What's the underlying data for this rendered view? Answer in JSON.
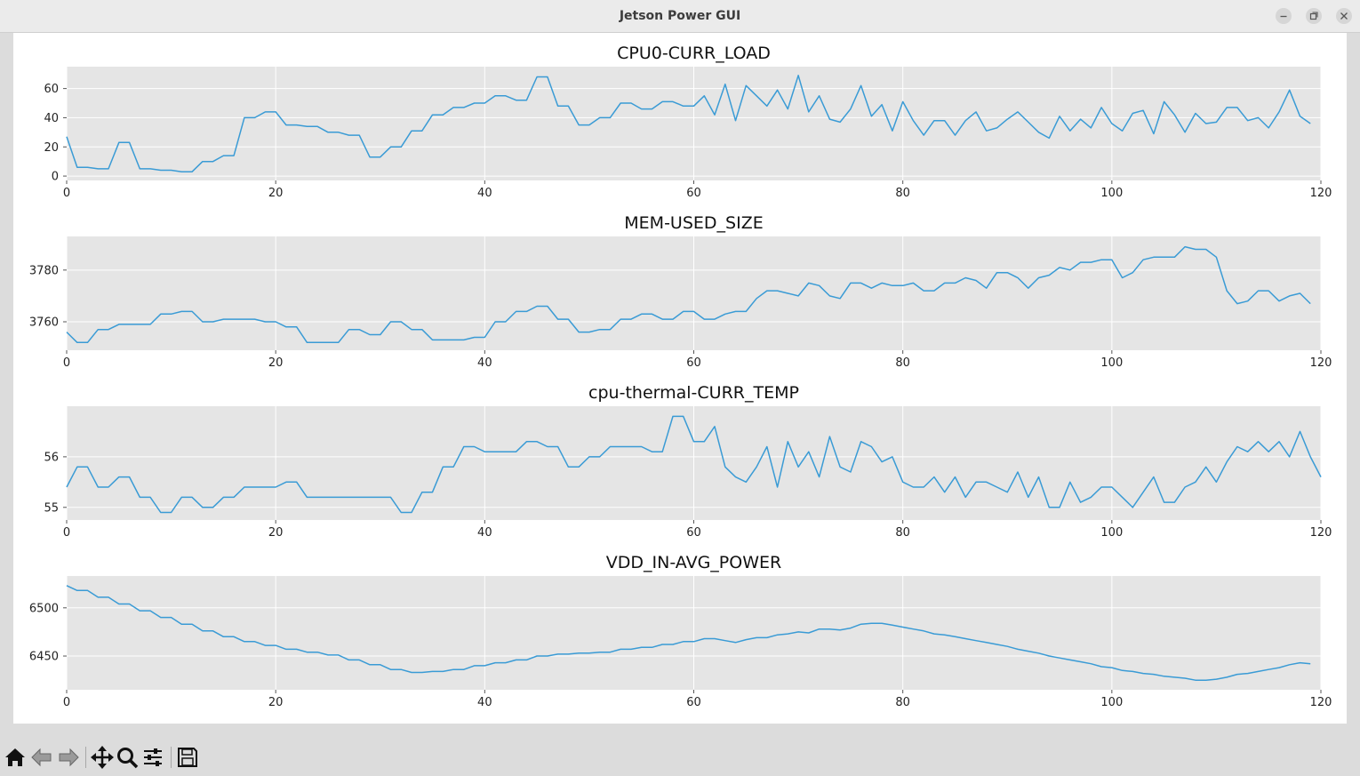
{
  "window": {
    "title": "Jetson Power GUI"
  },
  "icons": {
    "minimize": "minimize-icon",
    "maximize": "maximize-icon",
    "close": "close-icon",
    "home": "home-icon",
    "back": "back-arrow-icon",
    "forward": "forward-arrow-icon",
    "pan": "pan-move-icon",
    "zoom": "zoom-magnifier-icon",
    "configure": "configure-subplots-icon",
    "save": "save-disk-icon"
  },
  "colors": {
    "line": "#3a9bd5",
    "plot_bg": "#e5e5e5",
    "grid": "#ffffff",
    "text": "#222222"
  },
  "chart_data": [
    {
      "type": "line",
      "title": "CPU0-CURR_LOAD",
      "xlim": [
        0,
        120
      ],
      "ylim": [
        -3,
        75
      ],
      "xticks": [
        0,
        20,
        40,
        60,
        80,
        100,
        120
      ],
      "yticks": [
        0,
        20,
        40,
        60
      ],
      "x_start": 0,
      "values": [
        27,
        6,
        6,
        5,
        5,
        23,
        23,
        5,
        5,
        4,
        4,
        3,
        3,
        10,
        10,
        14,
        14,
        40,
        40,
        44,
        44,
        35,
        35,
        34,
        34,
        30,
        30,
        28,
        28,
        13,
        13,
        20,
        20,
        31,
        31,
        42,
        42,
        47,
        47,
        50,
        50,
        55,
        55,
        52,
        52,
        68,
        68,
        48,
        48,
        35,
        35,
        40,
        40,
        50,
        50,
        46,
        46,
        51,
        51,
        48,
        48,
        55,
        42,
        63,
        38,
        62,
        55,
        48,
        59,
        46,
        69,
        44,
        55,
        39,
        37,
        46,
        62,
        41,
        49,
        31,
        51,
        38,
        28,
        38,
        38,
        28,
        38,
        44,
        31,
        33,
        39,
        44,
        37,
        30,
        26,
        41,
        31,
        39,
        33,
        47,
        36,
        31,
        43,
        45,
        29,
        51,
        42,
        30,
        43,
        36,
        37,
        47,
        47,
        38,
        40,
        33,
        44,
        59,
        41,
        36
      ]
    },
    {
      "type": "line",
      "title": "MEM-USED_SIZE",
      "xlim": [
        0,
        120
      ],
      "ylim": [
        3749,
        3793
      ],
      "xticks": [
        0,
        20,
        40,
        60,
        80,
        100,
        120
      ],
      "yticks": [
        3760,
        3780
      ],
      "x_start": 0,
      "values": [
        3756,
        3752,
        3752,
        3757,
        3757,
        3759,
        3759,
        3759,
        3759,
        3763,
        3763,
        3764,
        3764,
        3760,
        3760,
        3761,
        3761,
        3761,
        3761,
        3760,
        3760,
        3758,
        3758,
        3752,
        3752,
        3752,
        3752,
        3757,
        3757,
        3755,
        3755,
        3760,
        3760,
        3757,
        3757,
        3753,
        3753,
        3753,
        3753,
        3754,
        3754,
        3760,
        3760,
        3764,
        3764,
        3766,
        3766,
        3761,
        3761,
        3756,
        3756,
        3757,
        3757,
        3761,
        3761,
        3763,
        3763,
        3761,
        3761,
        3764,
        3764,
        3761,
        3761,
        3763,
        3764,
        3764,
        3769,
        3772,
        3772,
        3771,
        3770,
        3775,
        3774,
        3770,
        3769,
        3775,
        3775,
        3773,
        3775,
        3774,
        3774,
        3775,
        3772,
        3772,
        3775,
        3775,
        3777,
        3776,
        3773,
        3779,
        3779,
        3777,
        3773,
        3777,
        3778,
        3781,
        3780,
        3783,
        3783,
        3784,
        3784,
        3777,
        3779,
        3784,
        3785,
        3785,
        3785,
        3789,
        3788,
        3788,
        3785,
        3772,
        3767,
        3768,
        3772,
        3772,
        3768,
        3770,
        3771,
        3767
      ]
    },
    {
      "type": "line",
      "title": "cpu-thermal-CURR_TEMP",
      "xlim": [
        0,
        120
      ],
      "ylim": [
        54.75,
        57.0
      ],
      "xticks": [
        0,
        20,
        40,
        60,
        80,
        100,
        120
      ],
      "yticks": [
        55,
        56
      ],
      "x_start": 0,
      "values": [
        55.4,
        55.8,
        55.8,
        55.4,
        55.4,
        55.6,
        55.6,
        55.2,
        55.2,
        54.9,
        54.9,
        55.2,
        55.2,
        55.0,
        55.0,
        55.2,
        55.2,
        55.4,
        55.4,
        55.4,
        55.4,
        55.5,
        55.5,
        55.2,
        55.2,
        55.2,
        55.2,
        55.2,
        55.2,
        55.2,
        55.2,
        55.2,
        54.9,
        54.9,
        55.3,
        55.3,
        55.8,
        55.8,
        56.2,
        56.2,
        56.1,
        56.1,
        56.1,
        56.1,
        56.3,
        56.3,
        56.2,
        56.2,
        55.8,
        55.8,
        56.0,
        56.0,
        56.2,
        56.2,
        56.2,
        56.2,
        56.1,
        56.1,
        56.8,
        56.8,
        56.3,
        56.3,
        56.6,
        55.8,
        55.6,
        55.5,
        55.8,
        56.2,
        55.4,
        56.3,
        55.8,
        56.1,
        55.6,
        56.4,
        55.8,
        55.7,
        56.3,
        56.2,
        55.9,
        56.0,
        55.5,
        55.4,
        55.4,
        55.6,
        55.3,
        55.6,
        55.2,
        55.5,
        55.5,
        55.4,
        55.3,
        55.7,
        55.2,
        55.6,
        55.0,
        55.0,
        55.5,
        55.1,
        55.2,
        55.4,
        55.4,
        55.2,
        55.0,
        55.3,
        55.6,
        55.1,
        55.1,
        55.4,
        55.5,
        55.8,
        55.5,
        55.9,
        56.2,
        56.1,
        56.3,
        56.1,
        56.3,
        56.0,
        56.5,
        56.0,
        55.6
      ]
    },
    {
      "type": "line",
      "title": "VDD_IN-AVG_POWER",
      "xlim": [
        0,
        120
      ],
      "ylim": [
        6415,
        6533
      ],
      "xticks": [
        0,
        20,
        40,
        60,
        80,
        100,
        120
      ],
      "yticks": [
        6450,
        6500
      ],
      "x_start": 0,
      "values": [
        6523,
        6518,
        6518,
        6511,
        6511,
        6504,
        6504,
        6497,
        6497,
        6490,
        6490,
        6483,
        6483,
        6476,
        6476,
        6470,
        6470,
        6465,
        6465,
        6461,
        6461,
        6457,
        6457,
        6454,
        6454,
        6451,
        6451,
        6446,
        6446,
        6441,
        6441,
        6436,
        6436,
        6433,
        6433,
        6434,
        6434,
        6436,
        6436,
        6440,
        6440,
        6443,
        6443,
        6446,
        6446,
        6450,
        6450,
        6452,
        6452,
        6453,
        6453,
        6454,
        6454,
        6457,
        6457,
        6459,
        6459,
        6462,
        6462,
        6465,
        6465,
        6468,
        6468,
        6466,
        6464,
        6467,
        6469,
        6469,
        6472,
        6473,
        6475,
        6474,
        6478,
        6478,
        6477,
        6479,
        6483,
        6484,
        6484,
        6482,
        6480,
        6478,
        6476,
        6473,
        6472,
        6470,
        6468,
        6466,
        6464,
        6462,
        6460,
        6457,
        6455,
        6453,
        6450,
        6448,
        6446,
        6444,
        6442,
        6439,
        6438,
        6435,
        6434,
        6432,
        6431,
        6429,
        6428,
        6427,
        6425,
        6425,
        6426,
        6428,
        6431,
        6432,
        6434,
        6436,
        6438,
        6441,
        6443,
        6442
      ]
    }
  ]
}
